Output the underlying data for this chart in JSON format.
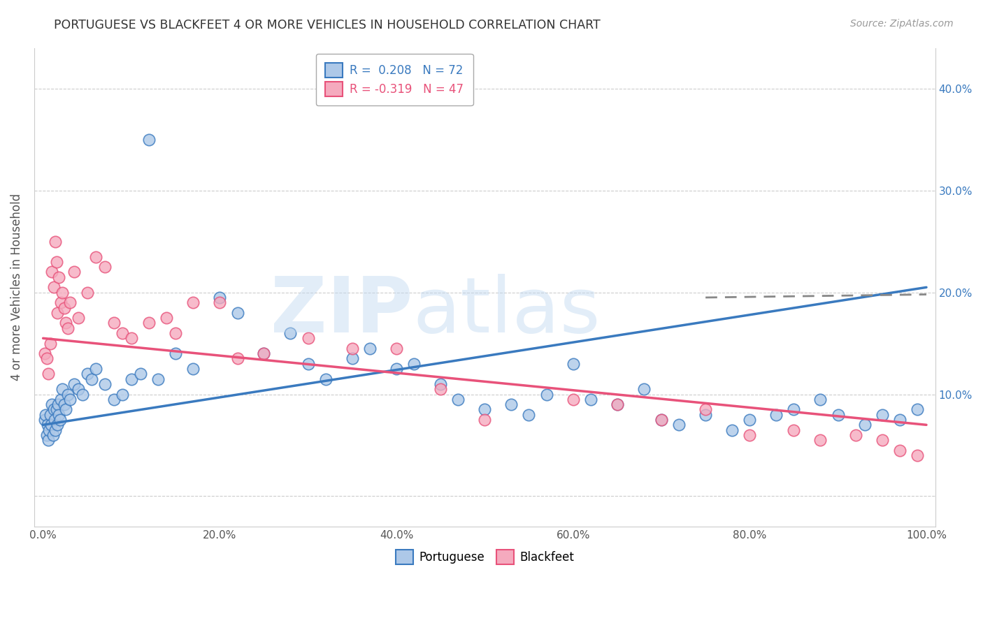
{
  "title": "PORTUGUESE VS BLACKFEET 4 OR MORE VEHICLES IN HOUSEHOLD CORRELATION CHART",
  "source": "Source: ZipAtlas.com",
  "ylabel": "4 or more Vehicles in Household",
  "xlim": [
    -1,
    101
  ],
  "ylim": [
    -3,
    44
  ],
  "ytick_labels": [
    "",
    "10.0%",
    "20.0%",
    "30.0%",
    "40.0%"
  ],
  "ytick_values": [
    0,
    10,
    20,
    30,
    40
  ],
  "xtick_labels": [
    "0.0%",
    "20.0%",
    "40.0%",
    "60.0%",
    "80.0%",
    "100.0%"
  ],
  "xtick_values": [
    0,
    20,
    40,
    60,
    80,
    100
  ],
  "portuguese_R": 0.208,
  "portuguese_N": 72,
  "blackfeet_R": -0.319,
  "blackfeet_N": 47,
  "portuguese_color": "#adc8e8",
  "blackfeet_color": "#f5aabe",
  "portuguese_line_color": "#3a7abf",
  "blackfeet_line_color": "#e8527a",
  "portuguese_trend": [
    7.0,
    20.5
  ],
  "blackfeet_trend": [
    15.5,
    7.0
  ],
  "port_x": [
    0.2,
    0.3,
    0.4,
    0.5,
    0.6,
    0.7,
    0.8,
    0.9,
    1.0,
    1.1,
    1.2,
    1.3,
    1.4,
    1.5,
    1.6,
    1.7,
    1.8,
    1.9,
    2.0,
    2.2,
    2.4,
    2.6,
    2.8,
    3.0,
    3.5,
    4.0,
    4.5,
    5.0,
    5.5,
    6.0,
    7.0,
    8.0,
    9.0,
    10.0,
    11.0,
    12.0,
    13.0,
    15.0,
    17.0,
    20.0,
    22.0,
    25.0,
    28.0,
    30.0,
    32.0,
    35.0,
    37.0,
    40.0,
    42.0,
    45.0,
    47.0,
    50.0,
    53.0,
    55.0,
    57.0,
    60.0,
    62.0,
    65.0,
    68.0,
    70.0,
    72.0,
    75.0,
    78.0,
    80.0,
    83.0,
    85.0,
    88.0,
    90.0,
    93.0,
    95.0,
    97.0,
    99.0
  ],
  "port_y": [
    7.5,
    8.0,
    6.0,
    7.0,
    5.5,
    6.5,
    8.0,
    7.0,
    9.0,
    6.0,
    8.5,
    7.5,
    6.5,
    8.5,
    7.0,
    9.0,
    8.0,
    7.5,
    9.5,
    10.5,
    9.0,
    8.5,
    10.0,
    9.5,
    11.0,
    10.5,
    10.0,
    12.0,
    11.5,
    12.5,
    11.0,
    9.5,
    10.0,
    11.5,
    12.0,
    35.0,
    11.5,
    14.0,
    12.5,
    19.5,
    18.0,
    14.0,
    16.0,
    13.0,
    11.5,
    13.5,
    14.5,
    12.5,
    13.0,
    11.0,
    9.5,
    8.5,
    9.0,
    8.0,
    10.0,
    13.0,
    9.5,
    9.0,
    10.5,
    7.5,
    7.0,
    8.0,
    6.5,
    7.5,
    8.0,
    8.5,
    9.5,
    8.0,
    7.0,
    8.0,
    7.5,
    8.5
  ],
  "black_x": [
    0.2,
    0.4,
    0.6,
    0.8,
    1.0,
    1.2,
    1.4,
    1.5,
    1.6,
    1.8,
    2.0,
    2.2,
    2.4,
    2.6,
    2.8,
    3.0,
    3.5,
    4.0,
    5.0,
    6.0,
    7.0,
    8.0,
    9.0,
    10.0,
    12.0,
    14.0,
    15.0,
    17.0,
    20.0,
    22.0,
    25.0,
    30.0,
    35.0,
    40.0,
    45.0,
    50.0,
    60.0,
    65.0,
    70.0,
    75.0,
    80.0,
    85.0,
    88.0,
    92.0,
    95.0,
    97.0,
    99.0
  ],
  "black_y": [
    14.0,
    13.5,
    12.0,
    15.0,
    22.0,
    20.5,
    25.0,
    23.0,
    18.0,
    21.5,
    19.0,
    20.0,
    18.5,
    17.0,
    16.5,
    19.0,
    22.0,
    17.5,
    20.0,
    23.5,
    22.5,
    17.0,
    16.0,
    15.5,
    17.0,
    17.5,
    16.0,
    19.0,
    19.0,
    13.5,
    14.0,
    15.5,
    14.5,
    14.5,
    10.5,
    7.5,
    9.5,
    9.0,
    7.5,
    8.5,
    6.0,
    6.5,
    5.5,
    6.0,
    5.5,
    4.5,
    4.0
  ]
}
